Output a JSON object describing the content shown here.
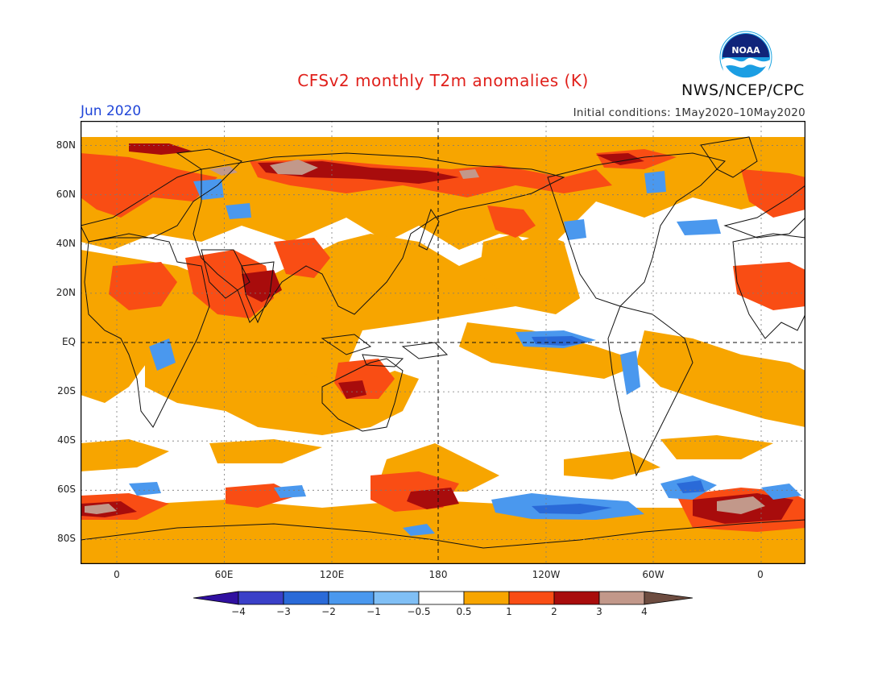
{
  "header": {
    "title": "CFSv2 monthly T2m anomalies (K)",
    "month": "Jun 2020",
    "initial_conditions": "Initial conditions: 1May2020–10May2020",
    "agency": "NWS/NCEP/CPC",
    "logo_text": "NOAA"
  },
  "axes": {
    "lat_labels": [
      "80N",
      "60N",
      "40N",
      "20N",
      "EQ",
      "20S",
      "40S",
      "60S",
      "80S"
    ],
    "lon_labels": [
      "0",
      "60E",
      "120E",
      "180",
      "120W",
      "60W",
      "0"
    ]
  },
  "colorbar": {
    "labels": [
      "−4",
      "−3",
      "−2",
      "−1",
      "−0.5",
      "0.5",
      "1",
      "2",
      "3",
      "4"
    ],
    "colors": [
      "#3010a0",
      "#3a40c8",
      "#2a6ad8",
      "#4a98ee",
      "#80bff5",
      "#ffffff",
      "#f7a500",
      "#f94d14",
      "#a80c0c",
      "#c2988a",
      "#6d4c40"
    ]
  }
}
